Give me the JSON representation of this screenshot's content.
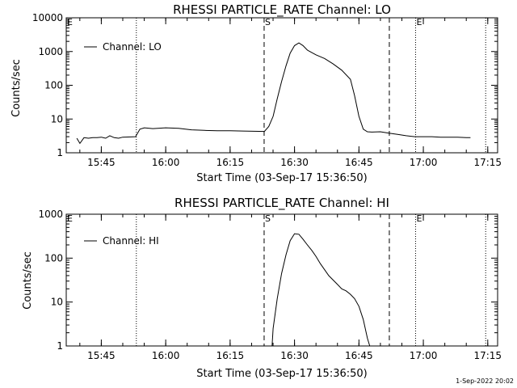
{
  "footer_timestamp": "1-Sep-2022 20:02",
  "chart_data": [
    {
      "type": "line",
      "title": "RHESSI PARTICLE_RATE Channel: LO",
      "xlabel": "Start Time (03-Sep-17 15:36:50)",
      "ylabel": "Counts/sec",
      "yscale": "log",
      "ylim": [
        1,
        10000
      ],
      "xlim": [
        15.6139,
        17.2883
      ],
      "x_ticks": [
        "15:45",
        "16:00",
        "16:15",
        "16:30",
        "16:45",
        "17:00",
        "17:15"
      ],
      "y_ticks": [
        "1",
        "10",
        "100",
        "1000",
        "10000"
      ],
      "legend_position": "top-left",
      "series": [
        {
          "name": "Channel: LO",
          "x": [
            15.655,
            15.667,
            15.683,
            15.7,
            15.717,
            15.733,
            15.75,
            15.767,
            15.783,
            15.8,
            15.817,
            15.833,
            15.883,
            15.9,
            15.917,
            15.95,
            16.0,
            16.05,
            16.1,
            16.15,
            16.2,
            16.25,
            16.3,
            16.383,
            16.4,
            16.417,
            16.433,
            16.45,
            16.467,
            16.483,
            16.5,
            16.517,
            16.533,
            16.55,
            16.583,
            16.617,
            16.65,
            16.683,
            16.717,
            16.733,
            16.75,
            16.767,
            16.783,
            16.8,
            16.833,
            16.867,
            16.9,
            16.933,
            16.967,
            17.0,
            17.033,
            17.067,
            17.1,
            17.133,
            17.167,
            17.183
          ],
          "values": [
            2.7,
            1.9,
            2.8,
            2.7,
            2.8,
            2.8,
            2.9,
            2.7,
            3.2,
            2.8,
            2.7,
            2.9,
            3.0,
            5.0,
            5.5,
            5.2,
            5.5,
            5.3,
            4.8,
            4.6,
            4.5,
            4.5,
            4.4,
            4.3,
            6.0,
            12,
            40,
            130,
            380,
            900,
            1500,
            1800,
            1500,
            1100,
            800,
            620,
            430,
            280,
            150,
            50,
            12,
            5.0,
            4.2,
            4.1,
            4.2,
            3.8,
            3.5,
            3.2,
            3.0,
            3.0,
            3.0,
            2.9,
            2.9,
            2.9,
            2.8,
            2.8
          ]
        }
      ],
      "event_markers": [
        {
          "label": "E",
          "x": 15.6139,
          "style": "dotted"
        },
        {
          "label": "",
          "x": 15.886,
          "style": "dotted"
        },
        {
          "label": "S",
          "x": 16.382,
          "style": "dashed"
        },
        {
          "label": "",
          "x": 16.868,
          "style": "dashed"
        },
        {
          "label": "E",
          "x": 16.97,
          "style": "dotted"
        },
        {
          "label": "",
          "x": 17.242,
          "style": "dotted"
        }
      ]
    },
    {
      "type": "line",
      "title": "RHESSI PARTICLE_RATE Channel: HI",
      "xlabel": "Start Time (03-Sep-17 15:36:50)",
      "ylabel": "Counts/sec",
      "yscale": "log",
      "ylim": [
        1,
        1000
      ],
      "xlim": [
        15.6139,
        17.2883
      ],
      "x_ticks": [
        "15:45",
        "16:00",
        "16:15",
        "16:30",
        "16:45",
        "17:00",
        "17:15"
      ],
      "y_ticks": [
        "1",
        "10",
        "100",
        "1000"
      ],
      "legend_position": "top-left",
      "series": [
        {
          "name": "Channel: HI",
          "x": [
            16.413,
            16.417,
            16.433,
            16.45,
            16.467,
            16.483,
            16.5,
            16.517,
            16.533,
            16.55,
            16.567,
            16.583,
            16.6,
            16.633,
            16.667,
            16.683,
            16.7,
            16.717,
            16.733,
            16.75,
            16.767,
            16.783,
            16.792
          ],
          "values": [
            1.0,
            2.5,
            12,
            45,
            120,
            250,
            360,
            350,
            270,
            200,
            150,
            110,
            75,
            40,
            25,
            20,
            18,
            15,
            12,
            8,
            4,
            1.5,
            1.0
          ]
        }
      ],
      "event_markers": [
        {
          "label": "E",
          "x": 15.6139,
          "style": "dotted"
        },
        {
          "label": "",
          "x": 15.886,
          "style": "dotted"
        },
        {
          "label": "S",
          "x": 16.382,
          "style": "dashed"
        },
        {
          "label": "",
          "x": 16.868,
          "style": "dashed"
        },
        {
          "label": "E",
          "x": 16.97,
          "style": "dotted"
        },
        {
          "label": "",
          "x": 17.242,
          "style": "dotted"
        }
      ]
    }
  ]
}
